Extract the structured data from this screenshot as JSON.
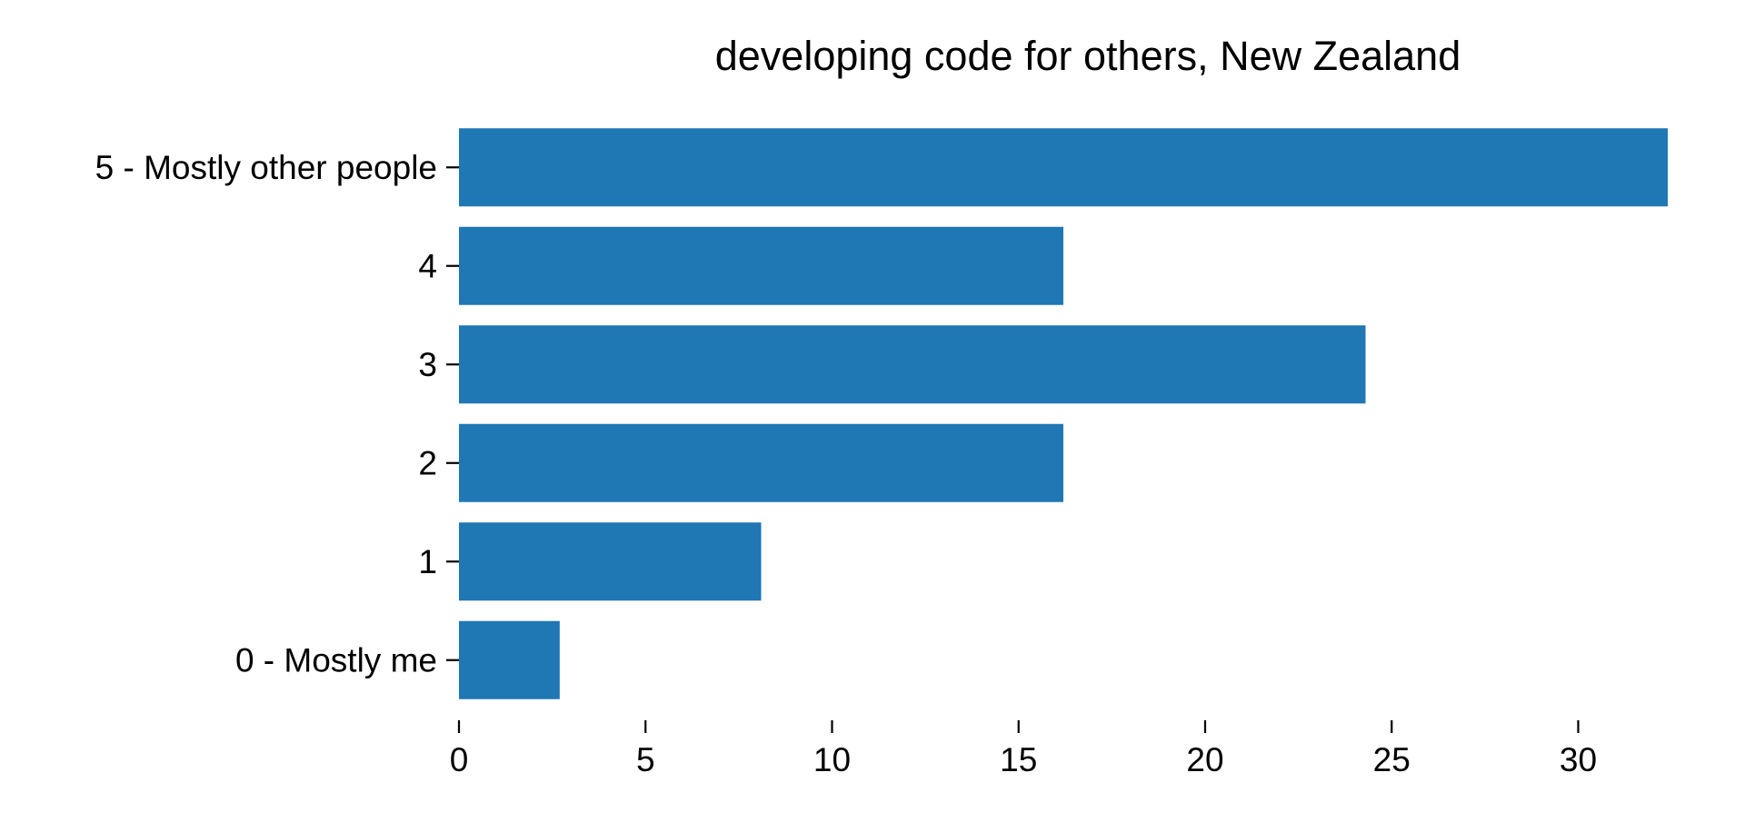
{
  "chart_data": {
    "type": "bar",
    "orientation": "horizontal",
    "title": "developing code for others, New Zealand",
    "xlabel": "",
    "ylabel": "",
    "categories": [
      "5 - Mostly other people",
      "4",
      "3",
      "2",
      "1",
      "0 - Mostly me"
    ],
    "values": [
      32.4,
      16.2,
      24.3,
      16.2,
      8.1,
      2.7
    ],
    "xlim": [
      0,
      32.4
    ],
    "xticks": [
      0,
      5,
      10,
      15,
      20,
      25,
      30
    ],
    "grid": false,
    "legend": "none",
    "bar_color": "#1f77b4"
  }
}
